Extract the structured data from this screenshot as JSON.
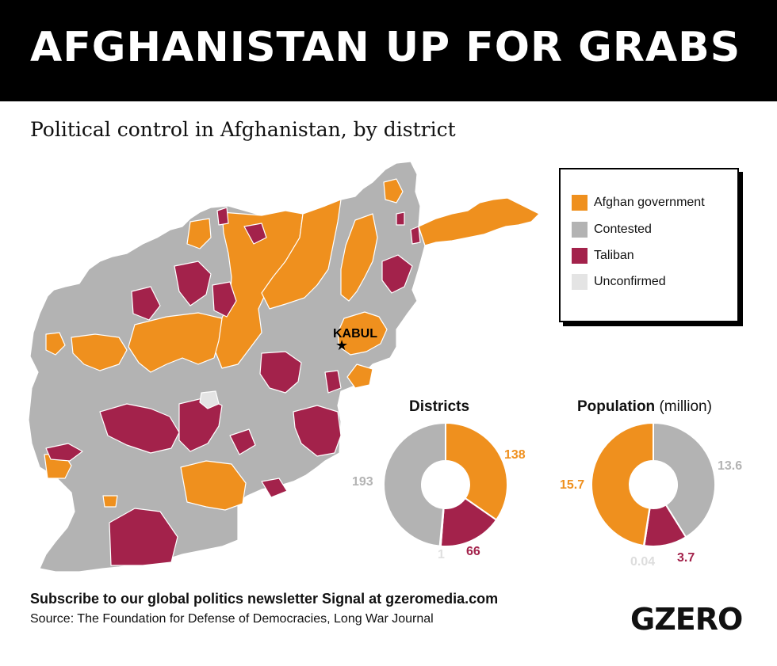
{
  "header": {
    "title": "AFGHANISTAN UP FOR GRABS"
  },
  "subtitle": "Political control in Afghanistan, by district",
  "colors": {
    "government": "#ef901e",
    "contested": "#b3b3b3",
    "taliban": "#a3224b",
    "unconfirmed": "#e4e4e4"
  },
  "map": {
    "city_label": "KABUL",
    "city_icon": "star-icon"
  },
  "legend": {
    "items": [
      {
        "label": "Afghan government",
        "color": "#ef901e"
      },
      {
        "label": "Contested",
        "color": "#b3b3b3"
      },
      {
        "label": "Taliban",
        "color": "#a3224b"
      },
      {
        "label": "Unconfirmed",
        "color": "#e4e4e4"
      }
    ]
  },
  "chart_data": [
    {
      "type": "pie",
      "title": "Districts",
      "labels": [
        "Afghan government",
        "Taliban",
        "Unconfirmed",
        "Contested"
      ],
      "values": [
        138,
        66,
        1,
        193
      ],
      "value_labels": [
        "138",
        "66",
        "1",
        "193"
      ]
    },
    {
      "type": "pie",
      "title": "Population",
      "subtitle": "(million)",
      "labels": [
        "Contested",
        "Taliban",
        "Unconfirmed",
        "Afghan government"
      ],
      "values": [
        13.6,
        3.7,
        0.04,
        15.7
      ],
      "value_labels": [
        "13.6",
        "3.7",
        "0.04",
        "15.7"
      ]
    }
  ],
  "footer": {
    "subscribe": "Subscribe to our global politics newsletter Signal at gzeromedia.com",
    "source": "Source: The Foundation for Defense of Democracies, Long War Journal",
    "logo": "GZERO"
  }
}
